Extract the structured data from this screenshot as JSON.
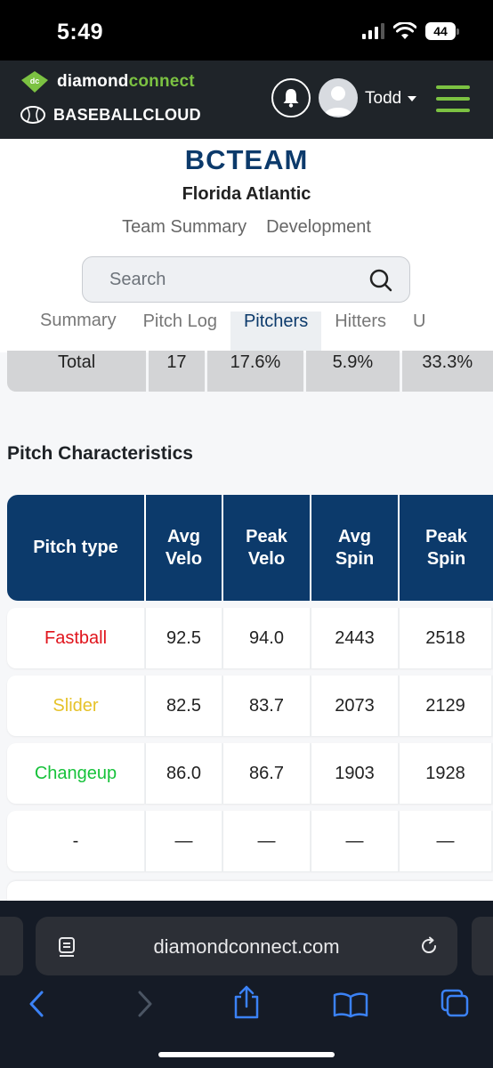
{
  "status_bar": {
    "time": "5:49",
    "battery": "44"
  },
  "header": {
    "logo_prefix": "diamond",
    "logo_suffix": "connect",
    "dc_badge": "dc",
    "logo2": "BASEBALLCLOUD",
    "user_name": "Todd"
  },
  "team": {
    "title": "BCTEAM",
    "subtitle": "Florida Atlantic",
    "tabs": [
      "Team Summary",
      "Development"
    ]
  },
  "search": {
    "placeholder": "Search"
  },
  "sub_tabs": [
    "Summary",
    "Pitch Log",
    "Pitchers",
    "Hitters",
    "U"
  ],
  "sub_tabs_active": 2,
  "totals_row": [
    "Total",
    "17",
    "17.6%",
    "5.9%",
    "33.3%"
  ],
  "section_title": "Pitch Characteristics",
  "table": {
    "headers": [
      [
        "Pitch type"
      ],
      [
        "Avg",
        "Velo"
      ],
      [
        "Peak",
        "Velo"
      ],
      [
        "Avg",
        "Spin"
      ],
      [
        "Peak",
        "Spin"
      ]
    ],
    "rows": [
      {
        "type": "Fastball",
        "color": "#e0141c",
        "values": [
          "92.5",
          "94.0",
          "2443",
          "2518"
        ]
      },
      {
        "type": "Slider",
        "color": "#e6c229",
        "values": [
          "82.5",
          "83.7",
          "2073",
          "2129"
        ]
      },
      {
        "type": "Changeup",
        "color": "#16c23a",
        "values": [
          "86.0",
          "86.7",
          "1903",
          "1928"
        ]
      },
      {
        "type": "-",
        "color": "#222222",
        "values": [
          "—",
          "—",
          "—",
          "—"
        ]
      }
    ]
  },
  "browser": {
    "url": "diamondconnect.com"
  },
  "colors": {
    "brand_navy": "#0c3a6b",
    "brand_green": "#7cc242",
    "header_bg": "#1f2429"
  }
}
